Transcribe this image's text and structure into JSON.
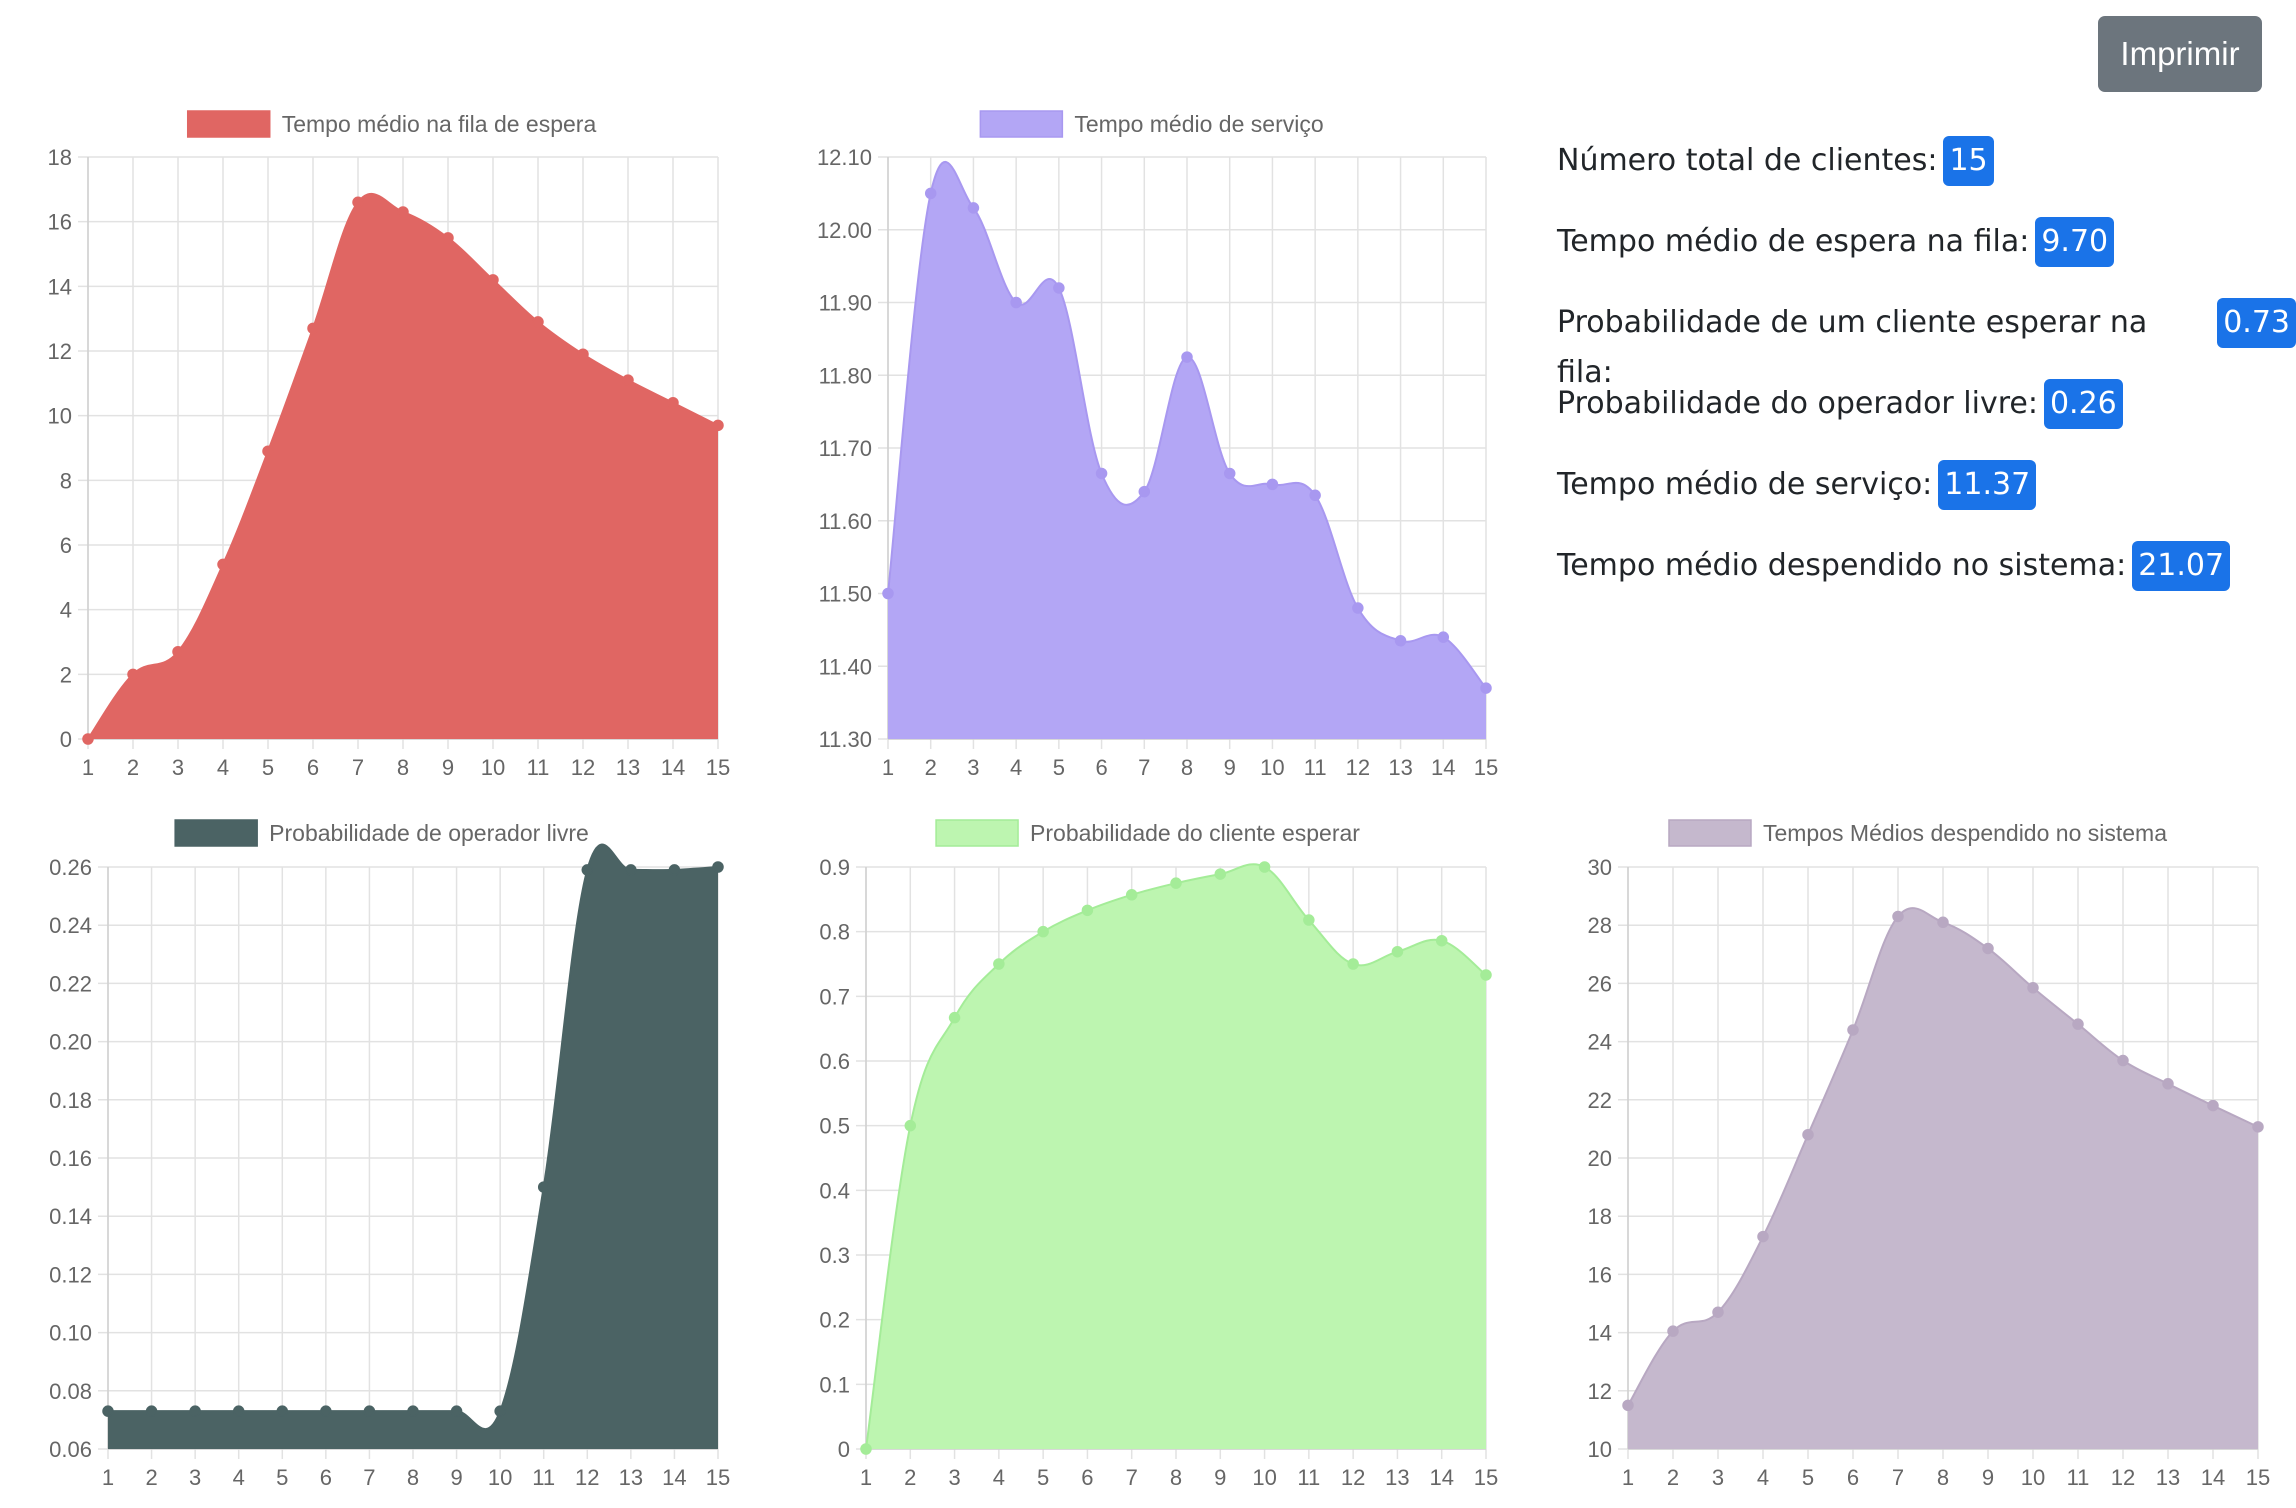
{
  "print_button": {
    "label": "Imprimir"
  },
  "stats": [
    {
      "label": "Número total de clientes:",
      "value": "15"
    },
    {
      "label": "Tempo médio de espera na fila:",
      "value": "9.70"
    },
    {
      "label": "Probabilidade de um cliente esperar na fila:",
      "value": "0.73"
    },
    {
      "label": "Probabilidade do operador livre:",
      "value": "0.26"
    },
    {
      "label": "Tempo médio de serviço:",
      "value": "11.37"
    },
    {
      "label": "Tempo médio despendido no sistema:",
      "value": "21.07"
    }
  ],
  "chart_data": [
    {
      "type": "area",
      "legend": "Tempo médio na fila de espera",
      "fill": "#e06663",
      "stroke": "#e06663",
      "point": "#e06663",
      "x": [
        1,
        2,
        3,
        4,
        5,
        6,
        7,
        8,
        9,
        10,
        11,
        12,
        13,
        14,
        15
      ],
      "values": [
        0,
        2.0,
        2.7,
        5.4,
        8.9,
        12.7,
        16.6,
        16.3,
        15.5,
        14.2,
        12.9,
        11.9,
        11.1,
        10.4,
        9.7
      ],
      "ylim": [
        0,
        18
      ],
      "yticks": [
        "0",
        "2",
        "4",
        "6",
        "8",
        "10",
        "12",
        "14",
        "16",
        "18"
      ],
      "grid": true,
      "legend_position": "top"
    },
    {
      "type": "area",
      "legend": "Tempo médio de serviço",
      "fill": "#b3a6f5",
      "stroke": "#a898f0",
      "point": "#a898f0",
      "x": [
        1,
        2,
        3,
        4,
        5,
        6,
        7,
        8,
        9,
        10,
        11,
        12,
        13,
        14,
        15
      ],
      "values": [
        11.5,
        12.05,
        12.03,
        11.9,
        11.92,
        11.665,
        11.64,
        11.825,
        11.665,
        11.65,
        11.635,
        11.48,
        11.435,
        11.44,
        11.37
      ],
      "ylim": [
        11.3,
        12.1
      ],
      "yticks": [
        "11.30",
        "11.40",
        "11.50",
        "11.60",
        "11.70",
        "11.80",
        "11.90",
        "12.00",
        "12.10"
      ],
      "grid": true,
      "legend_position": "top"
    },
    {
      "type": "area",
      "legend": "Probabilidade de operador livre",
      "fill": "#4b6364",
      "stroke": "#4b6364",
      "point": "#4b6364",
      "x": [
        1,
        2,
        3,
        4,
        5,
        6,
        7,
        8,
        9,
        10,
        11,
        12,
        13,
        14,
        15
      ],
      "values": [
        0.073,
        0.073,
        0.073,
        0.073,
        0.073,
        0.073,
        0.073,
        0.073,
        0.073,
        0.073,
        0.15,
        0.259,
        0.259,
        0.259,
        0.26
      ],
      "ylim": [
        0.06,
        0.26
      ],
      "yticks": [
        "0.06",
        "0.08",
        "0.10",
        "0.12",
        "0.14",
        "0.16",
        "0.18",
        "0.20",
        "0.22",
        "0.24",
        "0.26"
      ],
      "grid": true,
      "legend_position": "top"
    },
    {
      "type": "area",
      "legend": "Probabilidade do cliente esperar",
      "fill": "#bdf5b0",
      "stroke": "#a4ec98",
      "point": "#a4ec98",
      "x": [
        1,
        2,
        3,
        4,
        5,
        6,
        7,
        8,
        9,
        10,
        11,
        12,
        13,
        14,
        15
      ],
      "values": [
        0,
        0.5,
        0.667,
        0.75,
        0.8,
        0.833,
        0.857,
        0.875,
        0.889,
        0.9,
        0.818,
        0.75,
        0.769,
        0.786,
        0.733
      ],
      "ylim": [
        0,
        0.9
      ],
      "yticks": [
        "0",
        "0.1",
        "0.2",
        "0.3",
        "0.4",
        "0.5",
        "0.6",
        "0.7",
        "0.8",
        "0.9"
      ],
      "grid": true,
      "legend_position": "top"
    },
    {
      "type": "area",
      "legend": "Tempos Médios despendido no sistema",
      "fill": "#c5b8cd",
      "stroke": "#b8a8c2",
      "point": "#b8a8c2",
      "x": [
        1,
        2,
        3,
        4,
        5,
        6,
        7,
        8,
        9,
        10,
        11,
        12,
        13,
        14,
        15
      ],
      "values": [
        11.5,
        14.05,
        14.7,
        17.3,
        20.8,
        24.4,
        28.3,
        28.1,
        27.2,
        25.85,
        24.6,
        23.35,
        22.55,
        21.8,
        21.07
      ],
      "ylim": [
        10,
        30
      ],
      "yticks": [
        "10",
        "12",
        "14",
        "16",
        "18",
        "20",
        "22",
        "24",
        "26",
        "28",
        "30"
      ],
      "grid": true,
      "legend_position": "top"
    }
  ]
}
